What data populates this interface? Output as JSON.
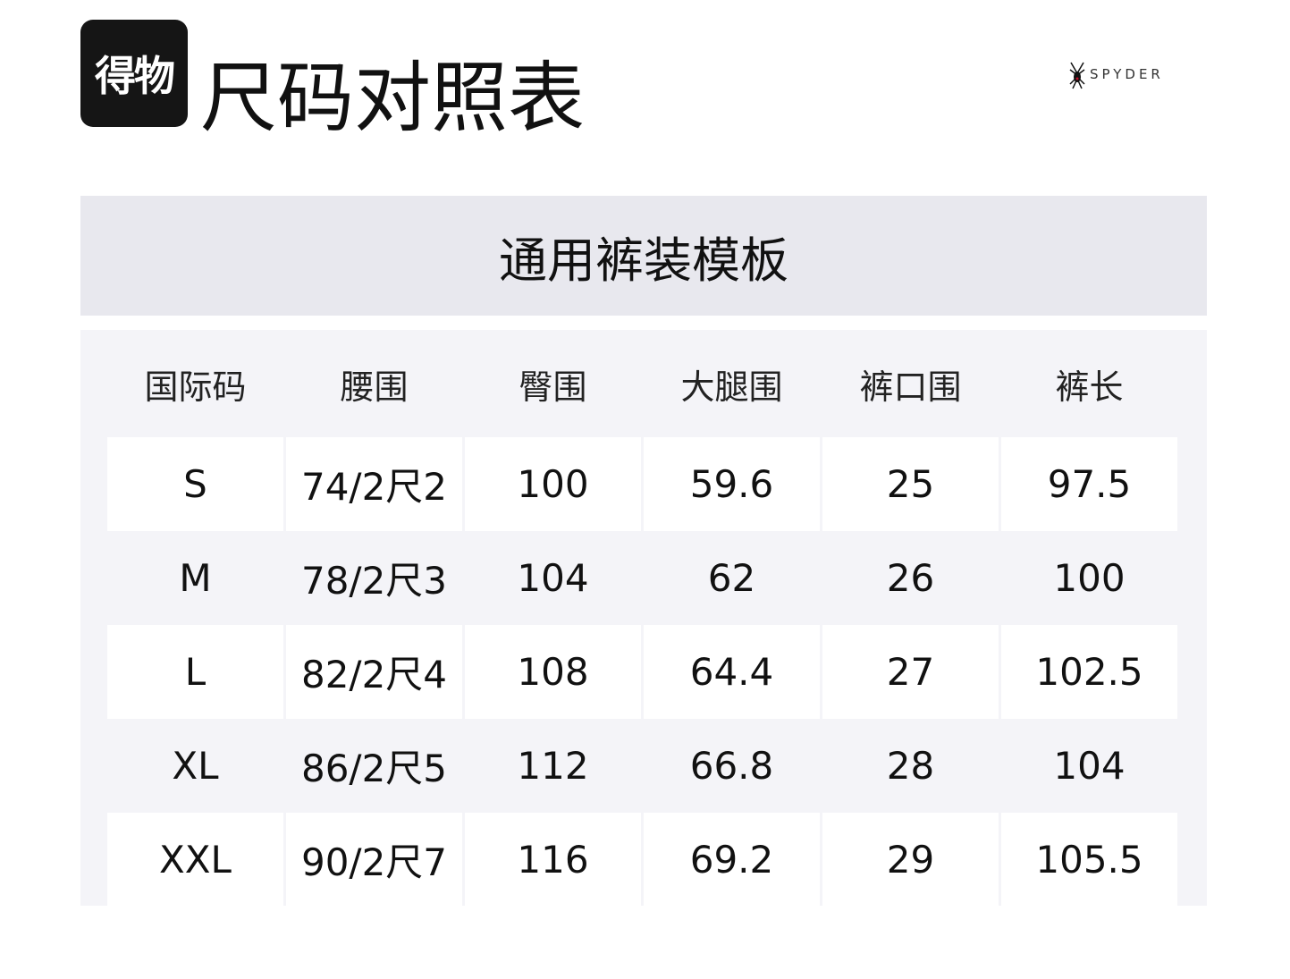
{
  "logo": {
    "text": "得物"
  },
  "title": "尺码对照表",
  "brand": {
    "text": "SPYDER",
    "icon": "spider-icon"
  },
  "section_title": "通用裤装模板",
  "table": {
    "headers": [
      "国际码",
      "腰围",
      "臀围",
      "大腿围",
      "裤口围",
      "裤长"
    ],
    "rows": [
      [
        "S",
        "74/2尺2",
        "100",
        "59.6",
        "25",
        "97.5"
      ],
      [
        "M",
        "78/2尺3",
        "104",
        "62",
        "26",
        "100"
      ],
      [
        "L",
        "82/2尺4",
        "108",
        "64.4",
        "27",
        "102.5"
      ],
      [
        "XL",
        "86/2尺5",
        "112",
        "66.8",
        "28",
        "104"
      ],
      [
        "XXL",
        "90/2尺7",
        "116",
        "69.2",
        "29",
        "105.5"
      ]
    ]
  }
}
